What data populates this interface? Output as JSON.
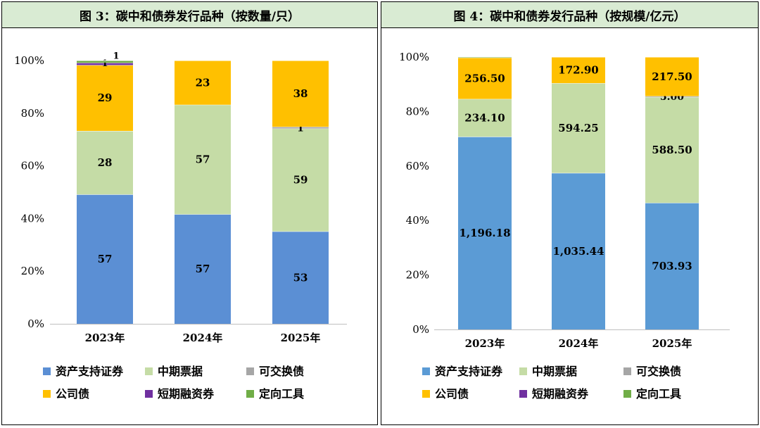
{
  "chart_data": [
    {
      "type": "bar",
      "stacked": "percent",
      "title": "图 3：碳中和债券发行品种（按数量/只）",
      "categories": [
        "2023年",
        "2024年",
        "2025年"
      ],
      "y_ticks": [
        "0%",
        "20%",
        "40%",
        "60%",
        "80%",
        "100%"
      ],
      "ylim": [
        0,
        100
      ],
      "series": [
        {
          "name": "资产支持证券",
          "color": "#5b8fd4",
          "values": [
            57,
            57,
            53
          ],
          "labels": [
            "57",
            "57",
            "53"
          ]
        },
        {
          "name": "中期票据",
          "color": "#c5dca6",
          "values": [
            28,
            57,
            59
          ],
          "labels": [
            "28",
            "57",
            "59"
          ]
        },
        {
          "name": "可交换债",
          "color": "#a6a6a6",
          "values": [
            0,
            0,
            1
          ],
          "labels": [
            null,
            null,
            "1"
          ]
        },
        {
          "name": "公司债",
          "color": "#ffc000",
          "values": [
            29,
            23,
            38
          ],
          "labels": [
            "29",
            "23",
            "38"
          ]
        },
        {
          "name": "短期融资券",
          "color": "#7030a0",
          "values": [
            1,
            0,
            0
          ],
          "labels": [
            "1",
            null,
            null
          ]
        },
        {
          "name": "定向工具",
          "color": "#70ad47",
          "values": [
            1,
            0,
            0
          ],
          "labels": [
            "1",
            null,
            null
          ]
        }
      ]
    },
    {
      "type": "bar",
      "stacked": "percent",
      "title": "图 4：碳中和债券发行品种（按规模/亿元）",
      "categories": [
        "2023年",
        "2024年",
        "2025年"
      ],
      "y_ticks": [
        "0%",
        "20%",
        "40%",
        "60%",
        "80%",
        "100%"
      ],
      "ylim": [
        0,
        100
      ],
      "series": [
        {
          "name": "资产支持证券",
          "color": "#5b9bd5",
          "values": [
            1196.18,
            1035.44,
            703.93
          ],
          "labels": [
            "1,196.18",
            "1,035.44",
            "703.93"
          ]
        },
        {
          "name": "中期票据",
          "color": "#c5dca6",
          "values": [
            234.1,
            594.25,
            588.5
          ],
          "labels": [
            "234.10",
            "594.25",
            "588.50"
          ]
        },
        {
          "name": "可交换债",
          "color": "#a6a6a6",
          "values": [
            0,
            0,
            5.0
          ],
          "labels": [
            null,
            null,
            "5.00"
          ]
        },
        {
          "name": "公司债",
          "color": "#ffc000",
          "values": [
            256.5,
            172.9,
            217.5
          ],
          "labels": [
            "256.50",
            "172.90",
            "217.50"
          ]
        },
        {
          "name": "短期融资券",
          "color": "#7030a0",
          "values": [
            0,
            0,
            0
          ],
          "labels": [
            null,
            null,
            null
          ]
        },
        {
          "name": "定向工具",
          "color": "#70ad47",
          "values": [
            4.0,
            0,
            0
          ],
          "labels": [
            null,
            null,
            null
          ]
        }
      ]
    }
  ]
}
